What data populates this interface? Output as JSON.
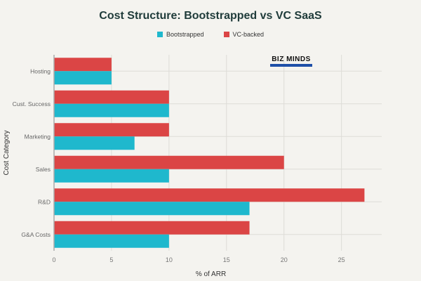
{
  "chart_data": {
    "type": "bar",
    "orientation": "horizontal",
    "title": "Cost Structure: Bootstrapped vs VC SaaS",
    "xlabel": "% of ARR",
    "ylabel": "Cost Category",
    "categories": [
      "Hosting",
      "Cust. Success",
      "Marketing",
      "Sales",
      "R&D",
      "G&A Costs"
    ],
    "series": [
      {
        "name": "Bootstrapped",
        "color": "#1fb8cd",
        "values": [
          5,
          10,
          7,
          10,
          17,
          10
        ]
      },
      {
        "name": "VC-backed",
        "color": "#db4545",
        "values": [
          5,
          10,
          10,
          20,
          27,
          17
        ]
      }
    ],
    "xlim": [
      0,
      28.5
    ],
    "xticks": [
      0,
      5,
      10,
      15,
      20,
      25
    ],
    "grid": true,
    "legend_position": "top"
  },
  "logo": {
    "text": "BIZ MINDS"
  }
}
